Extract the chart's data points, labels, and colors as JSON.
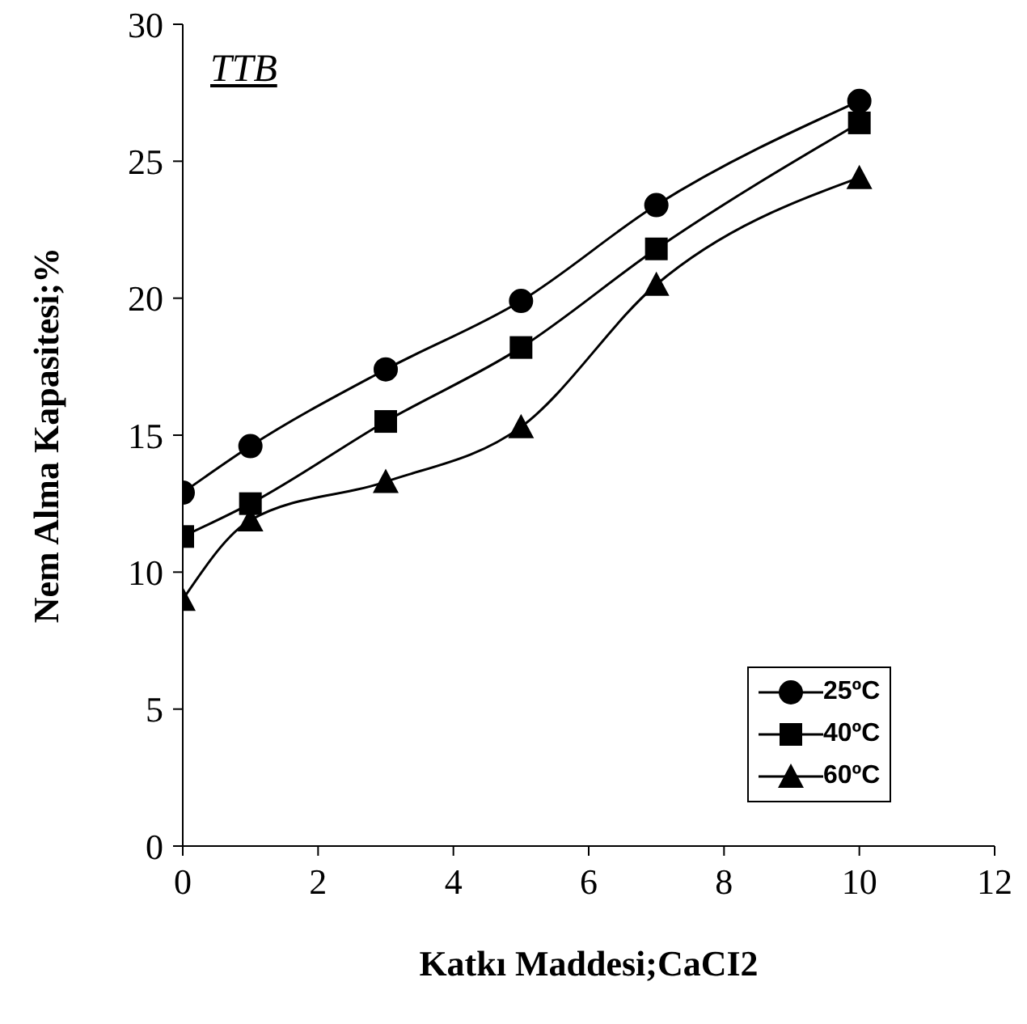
{
  "chart_data": {
    "type": "line",
    "xlabel": "Katkı Maddesi;CaCI2",
    "ylabel": "Nem Alma Kapasitesi;%",
    "annotations": [
      "TTB"
    ],
    "x": [
      0,
      1,
      3,
      5,
      7,
      10
    ],
    "series": [
      {
        "name": "25ºC",
        "color": "#000000",
        "marker": "circle",
        "values": [
          12.9,
          14.6,
          17.4,
          19.9,
          23.4,
          27.2
        ]
      },
      {
        "name": "40ºC",
        "color": "#000000",
        "marker": "square",
        "values": [
          11.3,
          12.5,
          15.5,
          18.2,
          21.8,
          26.4
        ]
      },
      {
        "name": "60ºC",
        "color": "#000000",
        "marker": "triangle",
        "values": [
          9.0,
          11.9,
          13.3,
          15.3,
          20.5,
          24.4
        ]
      }
    ],
    "xlim": [
      0,
      12
    ],
    "xticks": [
      0,
      2,
      4,
      6,
      8,
      10,
      12
    ],
    "ylim": [
      0,
      30
    ],
    "yticks": [
      0,
      5,
      10,
      15,
      20,
      25,
      30
    ],
    "grid": false,
    "legend": "bottom right",
    "line_style": "solid"
  }
}
